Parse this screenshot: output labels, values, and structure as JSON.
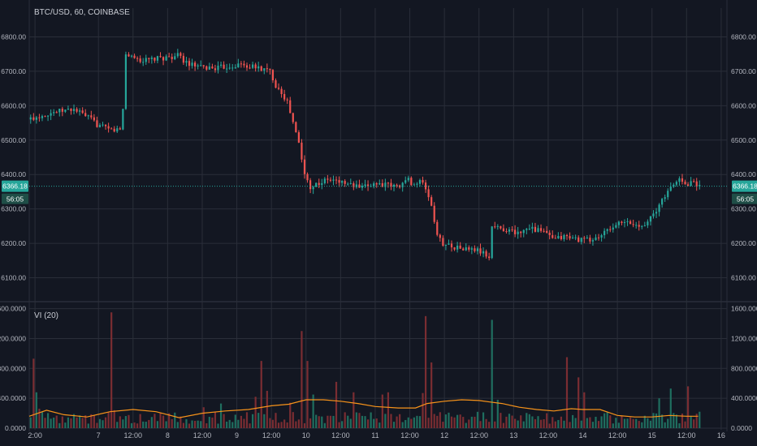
{
  "title": "BTC/USD, 60, COINBASE",
  "indicator_label": "VI (20)",
  "price_label": "6366.18",
  "countdown_label": "56:05",
  "colors": {
    "background": "#131722",
    "grid": "#2a2e39",
    "up": "#26a69a",
    "down": "#ef5350",
    "up_volume": "#1f6e5f",
    "down_volume": "#7a2d32",
    "ma_line": "#f7931a",
    "price_line": "#26a69a",
    "axis_text": "#b2b5be"
  },
  "chart_data": [
    {
      "type": "candlestick",
      "title": "BTC/USD, 60, COINBASE",
      "ylim": [
        6040,
        6860
      ],
      "y_ticks": [
        "6100.00",
        "6200.00",
        "6300.00",
        "6400.00",
        "6500.00",
        "6600.00",
        "6700.00",
        "6800.00"
      ],
      "y_tick_values": [
        6100,
        6200,
        6300,
        6400,
        6500,
        6600,
        6700,
        6800
      ],
      "x_ticks": [
        "2:00",
        "7",
        "12:00",
        "8",
        "12:00",
        "9",
        "12:00",
        "10",
        "12:00",
        "11",
        "12:00",
        "12",
        "12:00",
        "13",
        "12:00",
        "14",
        "12:00",
        "15",
        "12:00",
        "16"
      ],
      "x_tick_hours": [
        2,
        24,
        36,
        48,
        60,
        72,
        84,
        96,
        108,
        120,
        132,
        144,
        156,
        168,
        180,
        192,
        204,
        216,
        228,
        240
      ],
      "last_price": 6366.18,
      "path": [
        [
          0,
          6560
        ],
        [
          8,
          6580
        ],
        [
          16,
          6590
        ],
        [
          22,
          6560
        ],
        [
          24,
          6545
        ],
        [
          28,
          6530
        ],
        [
          32,
          6530
        ],
        [
          33,
          6590
        ],
        [
          34,
          6750
        ],
        [
          40,
          6730
        ],
        [
          48,
          6740
        ],
        [
          52,
          6745
        ],
        [
          56,
          6720
        ],
        [
          60,
          6710
        ],
        [
          66,
          6710
        ],
        [
          70,
          6715
        ],
        [
          74,
          6720
        ],
        [
          76,
          6715
        ],
        [
          80,
          6710
        ],
        [
          84,
          6700
        ],
        [
          86,
          6660
        ],
        [
          88,
          6640
        ],
        [
          90,
          6610
        ],
        [
          94,
          6490
        ],
        [
          96,
          6400
        ],
        [
          98,
          6365
        ],
        [
          104,
          6385
        ],
        [
          108,
          6380
        ],
        [
          112,
          6370
        ],
        [
          116,
          6360
        ],
        [
          120,
          6375
        ],
        [
          124,
          6370
        ],
        [
          128,
          6365
        ],
        [
          132,
          6385
        ],
        [
          134,
          6370
        ],
        [
          136,
          6380
        ],
        [
          138,
          6360
        ],
        [
          140,
          6310
        ],
        [
          142,
          6220
        ],
        [
          144,
          6200
        ],
        [
          150,
          6185
        ],
        [
          156,
          6180
        ],
        [
          158,
          6170
        ],
        [
          160,
          6160
        ],
        [
          161,
          6250
        ],
        [
          166,
          6240
        ],
        [
          170,
          6230
        ],
        [
          174,
          6250
        ],
        [
          176,
          6240
        ],
        [
          180,
          6230
        ],
        [
          182,
          6210
        ],
        [
          186,
          6220
        ],
        [
          192,
          6210
        ],
        [
          196,
          6210
        ],
        [
          200,
          6230
        ],
        [
          204,
          6255
        ],
        [
          208,
          6260
        ],
        [
          212,
          6250
        ],
        [
          214,
          6260
        ],
        [
          218,
          6290
        ],
        [
          220,
          6330
        ],
        [
          222,
          6350
        ],
        [
          224,
          6370
        ],
        [
          226,
          6390
        ],
        [
          228,
          6370
        ],
        [
          230,
          6380
        ],
        [
          232,
          6370
        ]
      ]
    },
    {
      "type": "bar",
      "title": "VI (20)",
      "ylim": [
        0,
        1650
      ],
      "y_ticks": [
        "0.0000",
        "400.0000",
        "800.0000",
        "1200.0000",
        "1600.0000"
      ],
      "y_tick_values": [
        0,
        400,
        800,
        1200,
        1600
      ],
      "spikes": [
        [
          1,
          930
        ],
        [
          2,
          480
        ],
        [
          3,
          260
        ],
        [
          28,
          1550
        ],
        [
          29,
          240
        ],
        [
          60,
          280
        ],
        [
          66,
          330
        ],
        [
          78,
          420
        ],
        [
          80,
          900
        ],
        [
          82,
          500
        ],
        [
          90,
          340
        ],
        [
          94,
          1300
        ],
        [
          96,
          900
        ],
        [
          98,
          450
        ],
        [
          106,
          620
        ],
        [
          112,
          480
        ],
        [
          122,
          450
        ],
        [
          124,
          480
        ],
        [
          136,
          470
        ],
        [
          137,
          1500
        ],
        [
          139,
          880
        ],
        [
          160,
          1450
        ],
        [
          162,
          380
        ],
        [
          186,
          950
        ],
        [
          190,
          680
        ],
        [
          192,
          480
        ],
        [
          218,
          400
        ],
        [
          222,
          530
        ],
        [
          228,
          560
        ],
        [
          232,
          220
        ]
      ],
      "ma_path": [
        [
          0,
          160
        ],
        [
          6,
          240
        ],
        [
          12,
          180
        ],
        [
          20,
          150
        ],
        [
          28,
          220
        ],
        [
          36,
          250
        ],
        [
          44,
          220
        ],
        [
          52,
          140
        ],
        [
          60,
          200
        ],
        [
          68,
          230
        ],
        [
          76,
          250
        ],
        [
          84,
          300
        ],
        [
          90,
          320
        ],
        [
          96,
          380
        ],
        [
          102,
          380
        ],
        [
          108,
          360
        ],
        [
          114,
          330
        ],
        [
          120,
          290
        ],
        [
          128,
          270
        ],
        [
          134,
          270
        ],
        [
          138,
          330
        ],
        [
          144,
          360
        ],
        [
          150,
          380
        ],
        [
          156,
          370
        ],
        [
          160,
          350
        ],
        [
          164,
          330
        ],
        [
          170,
          280
        ],
        [
          176,
          250
        ],
        [
          182,
          230
        ],
        [
          188,
          260
        ],
        [
          192,
          250
        ],
        [
          198,
          250
        ],
        [
          204,
          170
        ],
        [
          210,
          150
        ],
        [
          216,
          150
        ],
        [
          222,
          170
        ],
        [
          228,
          160
        ],
        [
          232,
          160
        ]
      ]
    }
  ]
}
